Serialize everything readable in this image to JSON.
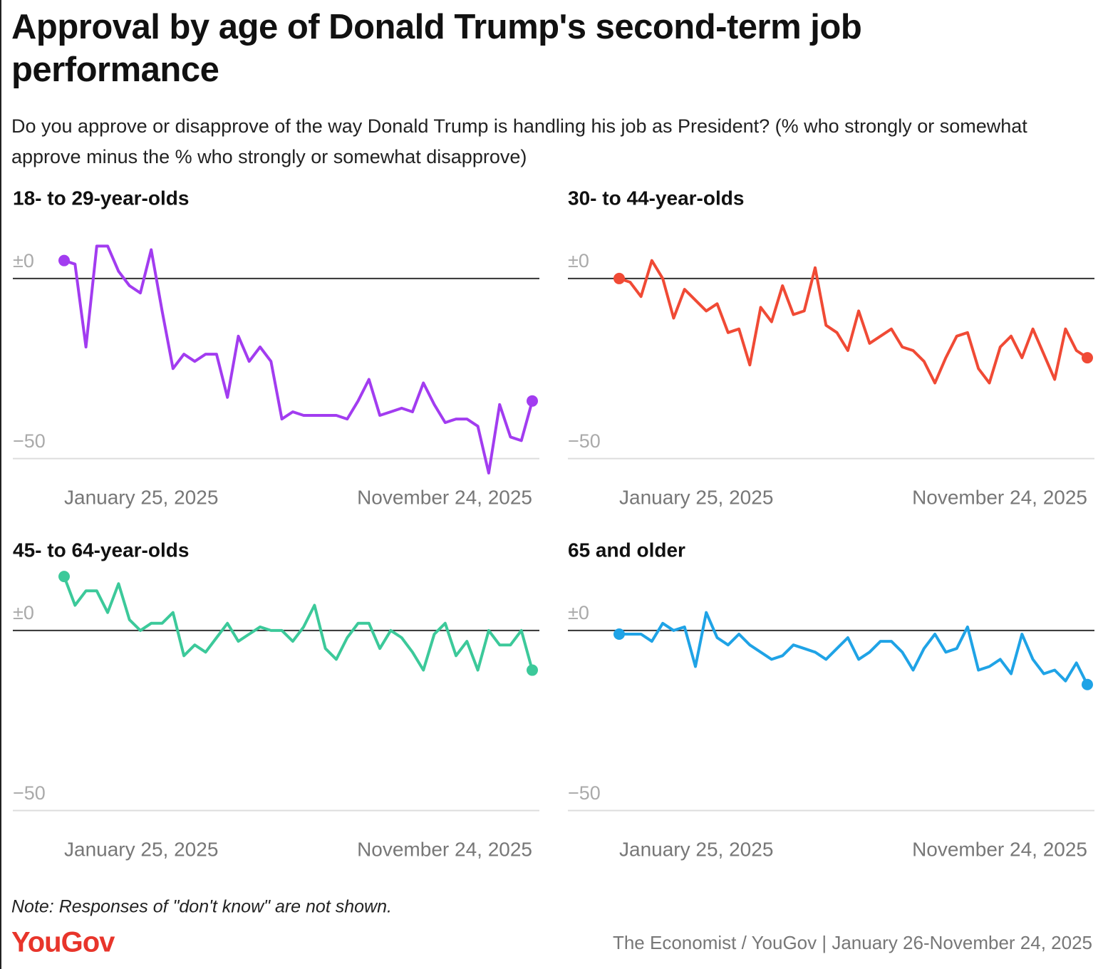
{
  "title": "Approval by age of Donald Trump's second-term job performance",
  "subtitle": "Do you approve or disapprove of the way Donald Trump is handling his job as President? (% who strongly or somewhat approve minus the % who strongly or somewhat disapprove)",
  "note": "Note: Responses of \"don't know\" are not shown.",
  "logo": "YouGov",
  "source": "The Economist / YouGov | January 26-November 24, 2025",
  "chart_data": [
    {
      "type": "line",
      "title": "18- to 29-year-olds",
      "color": "#a23cf0",
      "categories": [
        "January 25, 2025",
        null,
        null,
        null,
        null,
        null,
        null,
        null,
        null,
        null,
        null,
        null,
        null,
        null,
        null,
        null,
        null,
        null,
        null,
        null,
        null,
        null,
        null,
        null,
        null,
        null,
        null,
        null,
        null,
        null,
        null,
        null,
        null,
        null,
        null,
        null,
        null,
        null,
        null,
        null,
        null,
        null,
        null,
        "November 24, 2025"
      ],
      "values": [
        5,
        4,
        -19,
        9,
        9,
        2,
        -2,
        -4,
        8,
        -9,
        -25,
        -21,
        -23,
        -21,
        -21,
        -33,
        -16,
        -23,
        -19,
        -23,
        -39,
        -37,
        -38,
        -38,
        -38,
        -38,
        -39,
        -34,
        -28,
        -38,
        -37,
        -36,
        -37,
        -29,
        -35,
        -40,
        -39,
        -39,
        -41,
        -54,
        -35,
        -44,
        -45,
        -34
      ],
      "ylim": [
        -56,
        17
      ],
      "yticks": [
        {
          "value": 0,
          "label": "±0"
        },
        {
          "value": -50,
          "label": "−50"
        }
      ]
    },
    {
      "type": "line",
      "title": "30- to 44-year-olds",
      "color": "#f04a35",
      "categories": [
        "January 25, 2025",
        null,
        null,
        null,
        null,
        null,
        null,
        null,
        null,
        null,
        null,
        null,
        null,
        null,
        null,
        null,
        null,
        null,
        null,
        null,
        null,
        null,
        null,
        null,
        null,
        null,
        null,
        null,
        null,
        null,
        null,
        null,
        null,
        null,
        null,
        null,
        null,
        null,
        null,
        null,
        null,
        null,
        null,
        "November 24, 2025"
      ],
      "values": [
        0,
        -1,
        -5,
        5,
        0,
        -11,
        -3,
        -6,
        -9,
        -7,
        -15,
        -14,
        -24,
        -8,
        -12,
        -2,
        -10,
        -9,
        3,
        -13,
        -15,
        -20,
        -9,
        -18,
        -16,
        -14,
        -19,
        -20,
        -23,
        -29,
        -22,
        -16,
        -15,
        -25,
        -29,
        -19,
        -16,
        -22,
        -14,
        -21,
        -28,
        -14,
        -20,
        -22
      ],
      "ylim": [
        -56,
        17
      ],
      "yticks": [
        {
          "value": 0,
          "label": "±0"
        },
        {
          "value": -50,
          "label": "−50"
        }
      ]
    },
    {
      "type": "line",
      "title": "45- to 64-year-olds",
      "color": "#3cc99a",
      "categories": [
        "January 25, 2025",
        null,
        null,
        null,
        null,
        null,
        null,
        null,
        null,
        null,
        null,
        null,
        null,
        null,
        null,
        null,
        null,
        null,
        null,
        null,
        null,
        null,
        null,
        null,
        null,
        null,
        null,
        null,
        null,
        null,
        null,
        null,
        null,
        null,
        null,
        null,
        null,
        null,
        null,
        null,
        null,
        null,
        null,
        "November 24, 2025"
      ],
      "values": [
        15,
        7,
        11,
        11,
        5,
        13,
        3,
        0,
        2,
        2,
        5,
        -7,
        -4,
        -6,
        -2,
        2,
        -3,
        -1,
        1,
        0,
        0,
        -3,
        1,
        7,
        -5,
        -8,
        -2,
        2,
        2,
        -5,
        0,
        -2,
        -6,
        -11,
        -1,
        2,
        -7,
        -3,
        -11,
        0,
        -4,
        -4,
        0,
        -11
      ],
      "ylim": [
        -56,
        17
      ],
      "yticks": [
        {
          "value": 0,
          "label": "±0"
        },
        {
          "value": -50,
          "label": "−50"
        }
      ]
    },
    {
      "type": "line",
      "title": "65 and older",
      "color": "#1fa3e6",
      "categories": [
        "January 25, 2025",
        null,
        null,
        null,
        null,
        null,
        null,
        null,
        null,
        null,
        null,
        null,
        null,
        null,
        null,
        null,
        null,
        null,
        null,
        null,
        null,
        null,
        null,
        null,
        null,
        null,
        null,
        null,
        null,
        null,
        null,
        null,
        null,
        null,
        null,
        null,
        null,
        null,
        null,
        null,
        null,
        null,
        null,
        "November 24, 2025"
      ],
      "values": [
        -1,
        -1,
        -1,
        -3,
        2,
        0,
        1,
        -10,
        5,
        -2,
        -4,
        -1,
        -4,
        -6,
        -8,
        -7,
        -4,
        -5,
        -6,
        -8,
        -5,
        -2,
        -8,
        -6,
        -3,
        -3,
        -6,
        -11,
        -5,
        -1,
        -6,
        -5,
        1,
        -11,
        -10,
        -8,
        -12,
        -1,
        -8,
        -12,
        -11,
        -14,
        -9,
        -15
      ],
      "ylim": [
        -56,
        17
      ],
      "yticks": [
        {
          "value": 0,
          "label": "±0"
        },
        {
          "value": -50,
          "label": "−50"
        }
      ]
    }
  ]
}
